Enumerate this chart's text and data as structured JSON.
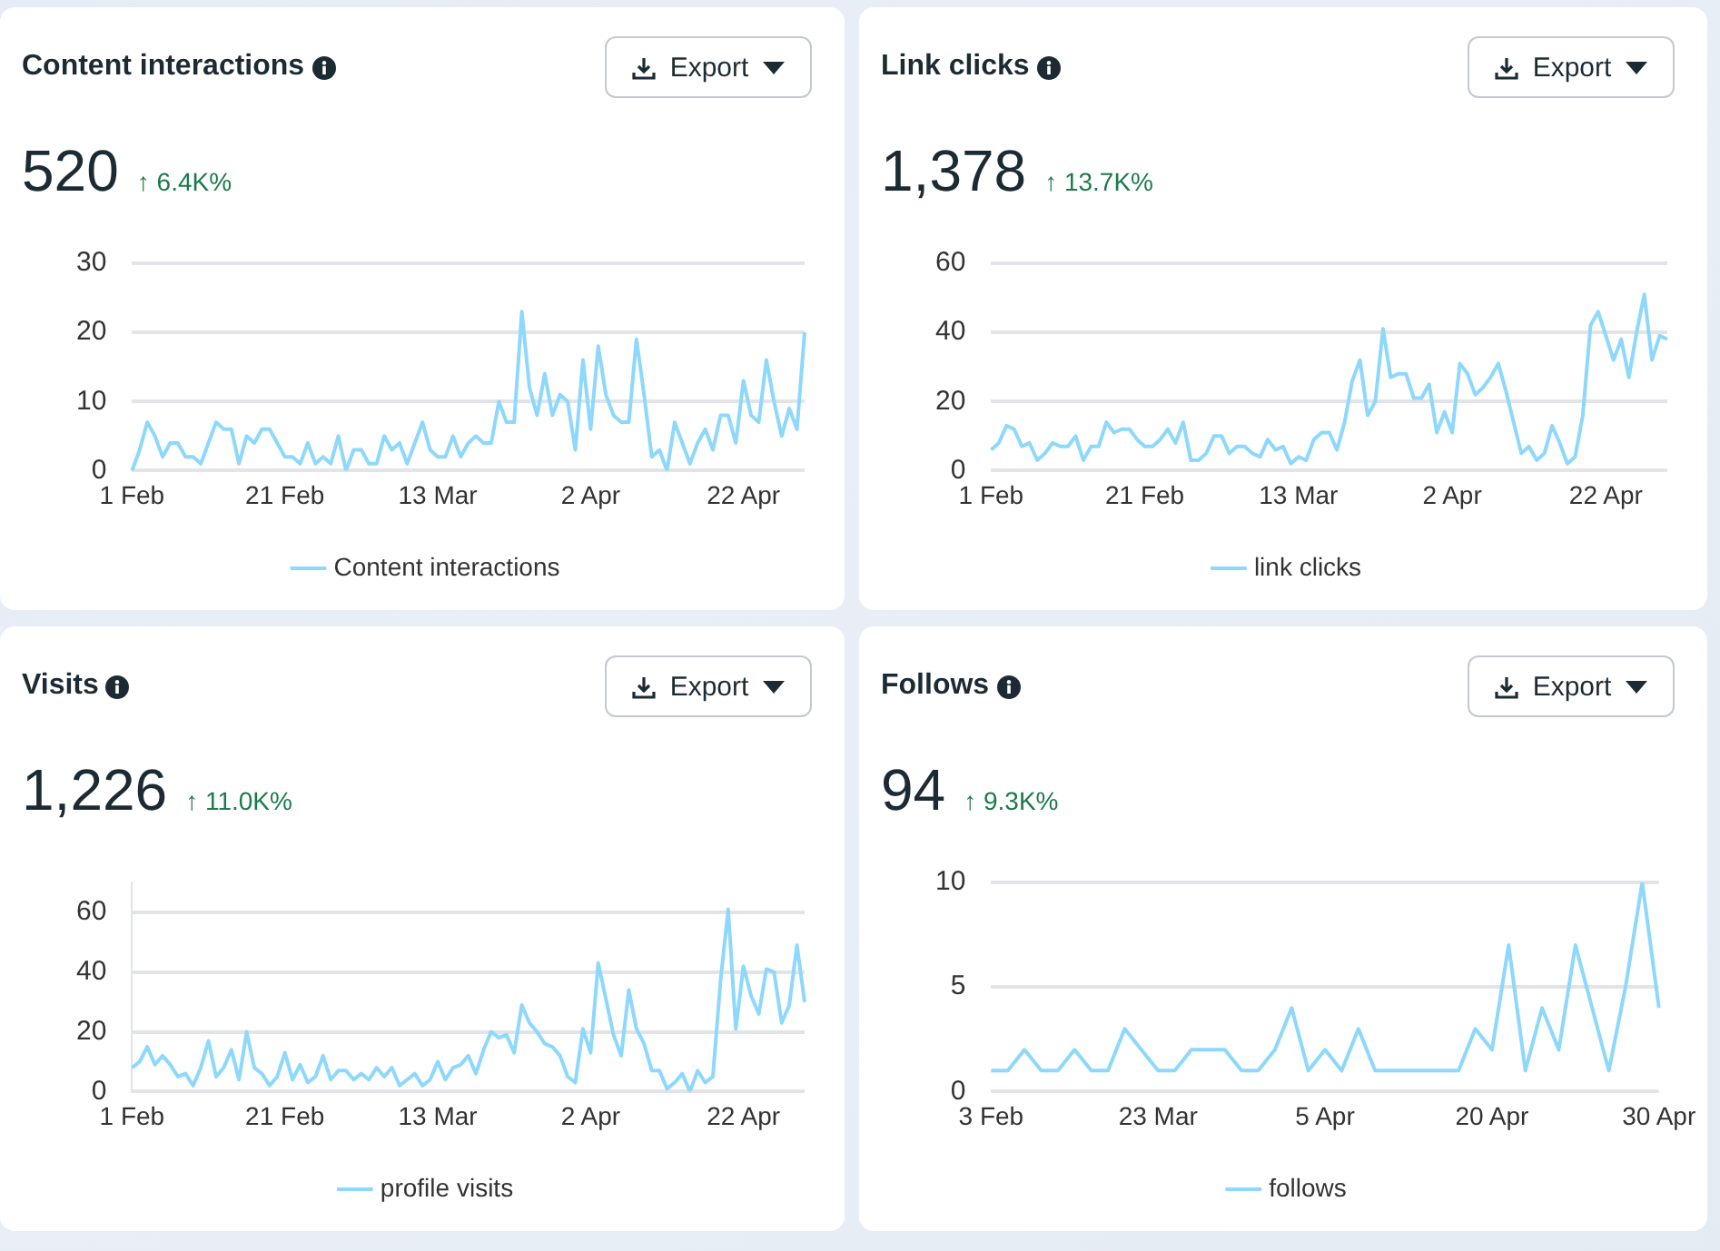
{
  "chart_data": [
    {
      "type": "line",
      "title": "Content interactions",
      "subtitle": "520",
      "annotations": [
        "↑ 6.4K%",
        "Export"
      ],
      "categories": [
        "1 Feb",
        null,
        null,
        null,
        null,
        null,
        null,
        null,
        null,
        null,
        null,
        null,
        null,
        null,
        null,
        null,
        null,
        null,
        null,
        null,
        "21 Feb",
        null,
        null,
        null,
        null,
        null,
        null,
        null,
        null,
        null,
        null,
        null,
        null,
        null,
        null,
        null,
        null,
        null,
        null,
        null,
        "13 Mar",
        null,
        null,
        null,
        null,
        null,
        null,
        null,
        null,
        null,
        null,
        null,
        null,
        null,
        null,
        null,
        null,
        null,
        null,
        null,
        "2 Apr",
        null,
        null,
        null,
        null,
        null,
        null,
        null,
        null,
        null,
        null,
        null,
        null,
        null,
        null,
        null,
        null,
        null,
        null,
        null,
        "22 Apr",
        null,
        null,
        null,
        null,
        null,
        null,
        null,
        null
      ],
      "series": [
        {
          "name": "Content interactions",
          "color": "#8dd8fc",
          "values": [
            0,
            3,
            7,
            5,
            2,
            4,
            4,
            2,
            2,
            1,
            4,
            7,
            6,
            6,
            1,
            5,
            4,
            6,
            6,
            4,
            2,
            2,
            1,
            4,
            1,
            2,
            1,
            5,
            0,
            3,
            3,
            1,
            1,
            5,
            3,
            4,
            1,
            4,
            7,
            3,
            2,
            2,
            5,
            2,
            4,
            5,
            4,
            4,
            10,
            7,
            7,
            23,
            12,
            8,
            14,
            8,
            11,
            10,
            3,
            16,
            6,
            18,
            11,
            8,
            7,
            7,
            19,
            11,
            2,
            3,
            0,
            7,
            4,
            1,
            4,
            6,
            3,
            8,
            8,
            4,
            13,
            8,
            7,
            16,
            10,
            5,
            9,
            6,
            20
          ]
        }
      ],
      "ylim": [
        0,
        30
      ],
      "yticks": [
        0,
        10,
        20,
        30
      ],
      "grid": "y",
      "legend": "bottom",
      "marker": "none"
    },
    {
      "type": "line",
      "title": "Link clicks",
      "subtitle": "1,378",
      "annotations": [
        "↑ 13.7K%",
        "Export"
      ],
      "categories": [
        "1 Feb",
        null,
        null,
        null,
        null,
        null,
        null,
        null,
        null,
        null,
        null,
        null,
        null,
        null,
        null,
        null,
        null,
        null,
        null,
        null,
        "21 Feb",
        null,
        null,
        null,
        null,
        null,
        null,
        null,
        null,
        null,
        null,
        null,
        null,
        null,
        null,
        null,
        null,
        null,
        null,
        null,
        "13 Mar",
        null,
        null,
        null,
        null,
        null,
        null,
        null,
        null,
        null,
        null,
        null,
        null,
        null,
        null,
        null,
        null,
        null,
        null,
        null,
        "2 Apr",
        null,
        null,
        null,
        null,
        null,
        null,
        null,
        null,
        null,
        null,
        null,
        null,
        null,
        null,
        null,
        null,
        null,
        null,
        null,
        "22 Apr",
        null,
        null,
        null,
        null,
        null,
        null,
        null,
        null
      ],
      "series": [
        {
          "name": "link clicks",
          "color": "#8dd8fc",
          "values": [
            6,
            8,
            13,
            12,
            7,
            8,
            3,
            5,
            8,
            7,
            7,
            10,
            3,
            7,
            7,
            14,
            11,
            12,
            12,
            9,
            7,
            7,
            9,
            12,
            8,
            14,
            3,
            3,
            5,
            10,
            10,
            5,
            7,
            7,
            5,
            4,
            9,
            6,
            7,
            2,
            4,
            3,
            9,
            11,
            11,
            6,
            14,
            26,
            32,
            16,
            20,
            41,
            27,
            28,
            28,
            21,
            21,
            25,
            11,
            17,
            11,
            31,
            28,
            22,
            24,
            27,
            31,
            23,
            14,
            5,
            7,
            3,
            5,
            13,
            8,
            2,
            4,
            16,
            42,
            46,
            39,
            32,
            38,
            27,
            40,
            51,
            32,
            39,
            38
          ]
        }
      ],
      "ylim": [
        0,
        60
      ],
      "yticks": [
        0,
        20,
        40,
        60
      ],
      "grid": "y",
      "legend": "bottom",
      "marker": "none"
    },
    {
      "type": "line",
      "title": "Visits",
      "subtitle": "1,226",
      "annotations": [
        "↑ 11.0K%",
        "Export"
      ],
      "categories": [
        "1 Feb",
        null,
        null,
        null,
        null,
        null,
        null,
        null,
        null,
        null,
        null,
        null,
        null,
        null,
        null,
        null,
        null,
        null,
        null,
        null,
        "21 Feb",
        null,
        null,
        null,
        null,
        null,
        null,
        null,
        null,
        null,
        null,
        null,
        null,
        null,
        null,
        null,
        null,
        null,
        null,
        null,
        "13 Mar",
        null,
        null,
        null,
        null,
        null,
        null,
        null,
        null,
        null,
        null,
        null,
        null,
        null,
        null,
        null,
        null,
        null,
        null,
        null,
        "2 Apr",
        null,
        null,
        null,
        null,
        null,
        null,
        null,
        null,
        null,
        null,
        null,
        null,
        null,
        null,
        null,
        null,
        null,
        null,
        null,
        "22 Apr",
        null,
        null,
        null,
        null,
        null,
        null,
        null,
        null
      ],
      "series": [
        {
          "name": "profile visits",
          "color": "#8dd8fc",
          "values": [
            8,
            10,
            15,
            9,
            12,
            9,
            5,
            6,
            2,
            8,
            17,
            5,
            8,
            14,
            4,
            20,
            8,
            6,
            2,
            5,
            13,
            4,
            9,
            3,
            5,
            12,
            4,
            7,
            7,
            4,
            6,
            4,
            8,
            5,
            8,
            2,
            4,
            6,
            2,
            4,
            10,
            4,
            8,
            9,
            12,
            6,
            14,
            20,
            18,
            19,
            13,
            29,
            23,
            20,
            16,
            15,
            12,
            5,
            3,
            21,
            13,
            43,
            31,
            19,
            12,
            34,
            21,
            16,
            7,
            7,
            1,
            3,
            6,
            0,
            7,
            3,
            5,
            37,
            61,
            21,
            42,
            32,
            26,
            41,
            40,
            23,
            29,
            49,
            30
          ]
        }
      ],
      "ylim": [
        0,
        70
      ],
      "yticks": [
        0,
        20,
        40,
        60
      ],
      "grid": "y",
      "legend": "bottom",
      "marker": "none"
    },
    {
      "type": "line",
      "title": "Follows",
      "subtitle": "94",
      "annotations": [
        "↑ 9.3K%",
        "Export"
      ],
      "categories": [
        "3 Feb",
        null,
        null,
        null,
        null,
        null,
        null,
        null,
        null,
        null,
        "23 Mar",
        null,
        null,
        null,
        null,
        null,
        null,
        null,
        null,
        null,
        "5 Apr",
        null,
        null,
        null,
        null,
        null,
        null,
        null,
        null,
        null,
        "20 Apr",
        null,
        null,
        null,
        null,
        null,
        null,
        null,
        null,
        null,
        "30 Apr"
      ],
      "series": [
        {
          "name": "follows",
          "color": "#8dd8fc",
          "values": [
            1,
            1,
            2,
            1,
            1,
            2,
            1,
            1,
            3,
            2,
            1,
            1,
            2,
            2,
            2,
            1,
            1,
            2,
            4,
            1,
            2,
            1,
            3,
            1,
            1,
            1,
            1,
            1,
            1,
            3,
            2,
            7,
            1,
            4,
            2,
            7,
            4,
            1,
            5,
            10,
            4
          ]
        }
      ],
      "ylim": [
        0,
        10
      ],
      "yticks": [
        0,
        5,
        10
      ],
      "grid": "y",
      "legend": "bottom",
      "marker": "none"
    }
  ]
}
